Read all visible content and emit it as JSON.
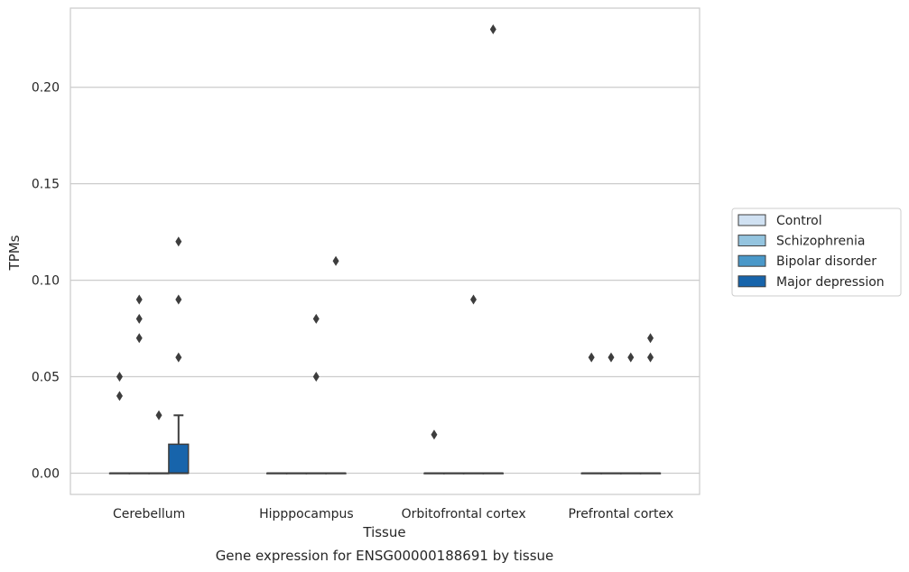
{
  "chart_data": {
    "type": "box",
    "xlabel": "Tissue",
    "ylabel": "TPMs",
    "caption": "Gene expression for ENSG00000188691 by tissue",
    "ylim": [
      -0.011,
      0.241
    ],
    "yticks": [
      0.0,
      0.05,
      0.1,
      0.15,
      0.2
    ],
    "ytick_labels": [
      "0.00",
      "0.05",
      "0.10",
      "0.15",
      "0.20"
    ],
    "categories": [
      "Cerebellum",
      "Hipppocampus",
      "Orbitofrontal cortex",
      "Prefrontal cortex"
    ],
    "grid": "horizontal",
    "legend_position": "right",
    "series": [
      {
        "name": "Control",
        "color": "#d0e1f2",
        "boxes": [
          {
            "q1": 0,
            "median": 0,
            "q3": 0,
            "whisker_low": 0,
            "whisker_high": 0,
            "outliers": [
              0.05,
              0.04
            ]
          },
          {
            "q1": 0,
            "median": 0,
            "q3": 0,
            "whisker_low": 0,
            "whisker_high": 0,
            "outliers": []
          },
          {
            "q1": 0,
            "median": 0,
            "q3": 0,
            "whisker_low": 0,
            "whisker_high": 0,
            "outliers": [
              0.02
            ]
          },
          {
            "q1": 0,
            "median": 0,
            "q3": 0,
            "whisker_low": 0,
            "whisker_high": 0,
            "outliers": [
              0.06
            ]
          }
        ]
      },
      {
        "name": "Schizophrenia",
        "color": "#94c4df",
        "boxes": [
          {
            "q1": 0,
            "median": 0,
            "q3": 0,
            "whisker_low": 0,
            "whisker_high": 0,
            "outliers": [
              0.09,
              0.08,
              0.07
            ]
          },
          {
            "q1": 0,
            "median": 0,
            "q3": 0,
            "whisker_low": 0,
            "whisker_high": 0,
            "outliers": []
          },
          {
            "q1": 0,
            "median": 0,
            "q3": 0,
            "whisker_low": 0,
            "whisker_high": 0,
            "outliers": []
          },
          {
            "q1": 0,
            "median": 0,
            "q3": 0,
            "whisker_low": 0,
            "whisker_high": 0,
            "outliers": [
              0.06
            ]
          }
        ]
      },
      {
        "name": "Bipolar disorder",
        "color": "#4a98c9",
        "boxes": [
          {
            "q1": 0,
            "median": 0,
            "q3": 0,
            "whisker_low": 0,
            "whisker_high": 0,
            "outliers": [
              0.03
            ]
          },
          {
            "q1": 0,
            "median": 0,
            "q3": 0,
            "whisker_low": 0,
            "whisker_high": 0,
            "outliers": [
              0.08,
              0.05
            ]
          },
          {
            "q1": 0,
            "median": 0,
            "q3": 0,
            "whisker_low": 0,
            "whisker_high": 0,
            "outliers": [
              0.09
            ]
          },
          {
            "q1": 0,
            "median": 0,
            "q3": 0,
            "whisker_low": 0,
            "whisker_high": 0,
            "outliers": [
              0.06
            ]
          }
        ]
      },
      {
        "name": "Major depression",
        "color": "#1764ab",
        "boxes": [
          {
            "q1": 0,
            "median": 0,
            "q3": 0.015,
            "whisker_low": 0,
            "whisker_high": 0.03,
            "outliers": [
              0.12,
              0.09,
              0.06
            ]
          },
          {
            "q1": 0,
            "median": 0,
            "q3": 0,
            "whisker_low": 0,
            "whisker_high": 0,
            "outliers": [
              0.11
            ]
          },
          {
            "q1": 0,
            "median": 0,
            "q3": 0,
            "whisker_low": 0,
            "whisker_high": 0,
            "outliers": [
              0.23
            ]
          },
          {
            "q1": 0,
            "median": 0,
            "q3": 0,
            "whisker_low": 0,
            "whisker_high": 0,
            "outliers": [
              0.07,
              0.06
            ]
          }
        ]
      }
    ]
  }
}
